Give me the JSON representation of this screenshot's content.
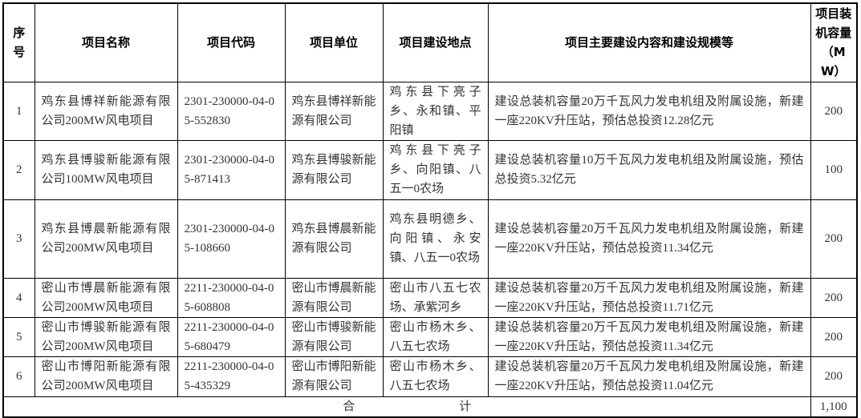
{
  "headers": {
    "no": "序号",
    "name": "项目名称",
    "code": "项目代码",
    "unit": "项目单位",
    "location": "项目建设地点",
    "content": "项目主要建设内容和建设规模等",
    "capacity": "项目装机容量（MW）"
  },
  "rows": [
    {
      "no": "1",
      "name": "鸡东县博祥新能源有限公司200MW风电项目",
      "code": "2301-230000-04-05-552830",
      "unit": "鸡东县博祥新能源有限公司",
      "location": "鸡东县下亮子乡、永和镇、平阳镇",
      "content": "建设总装机容量20万千瓦风力发电机组及附属设施，新建一座220KV升压站，预估总投资12.28亿元",
      "capacity": "200"
    },
    {
      "no": "2",
      "name": "鸡东县博骏新能源有限公司100MW风电项目",
      "code": "2301-230000-04-05-871413",
      "unit": "鸡东县博骏新能源有限公司",
      "location": "鸡东县下亮子乡、向阳镇、八五一0农场",
      "content": "建设总装机容量10万千瓦风力发电机组及附属设施，预估总投资5.32亿元",
      "capacity": "100"
    },
    {
      "no": "3",
      "name": "鸡东县博晨新能源有限公司200MW风电项目",
      "code": "2301-230000-04-05-108660",
      "unit": "鸡东县博晨新能源有限公司",
      "location": "鸡东县明德乡、向阳镇、永安镇、八五一0农场",
      "content": "建设总装机容量20万千瓦风力发电机组及附属设施，新建一座220KV升压站，预估总投资11.34亿元",
      "capacity": "200"
    },
    {
      "no": "4",
      "name": "密山市博晨新能源有限公司200MW风电项目",
      "code": "2211-230000-04-05-608808",
      "unit": "密山市博晨新能源有限公司",
      "location": "密山市八五七农场、承紫河乡",
      "content": "建设总装机容量20万千瓦风力发电机组及附属设施，新建一座220KV升压站，预估总投资11.71亿元",
      "capacity": "200"
    },
    {
      "no": "5",
      "name": "密山市博骏新能源有限公司200MW风电项目",
      "code": "2211-230000-04-05-680479",
      "unit": "密山市博骏新能源有限公司",
      "location": "密山市杨木乡、八五七农场",
      "content": "建设总装机容量20万千瓦风力发电机组及附属设施，新建一座220KV升压站，预估总投资11.34亿元",
      "capacity": "200"
    },
    {
      "no": "6",
      "name": "密山市博阳新能源有限公司200MW风电项目",
      "code": "2211-230000-04-05-435329",
      "unit": "密山市博阳新能源有限公司",
      "location": "密山市杨木乡、八五七农场",
      "content": "建设总装机容量20万千瓦风力发电机组及附属设施，新建一座220KV升压站，预估总投资11.04亿元",
      "capacity": "200"
    }
  ],
  "total": {
    "label_1": "合",
    "label_2": "计",
    "capacity": "1,100"
  }
}
